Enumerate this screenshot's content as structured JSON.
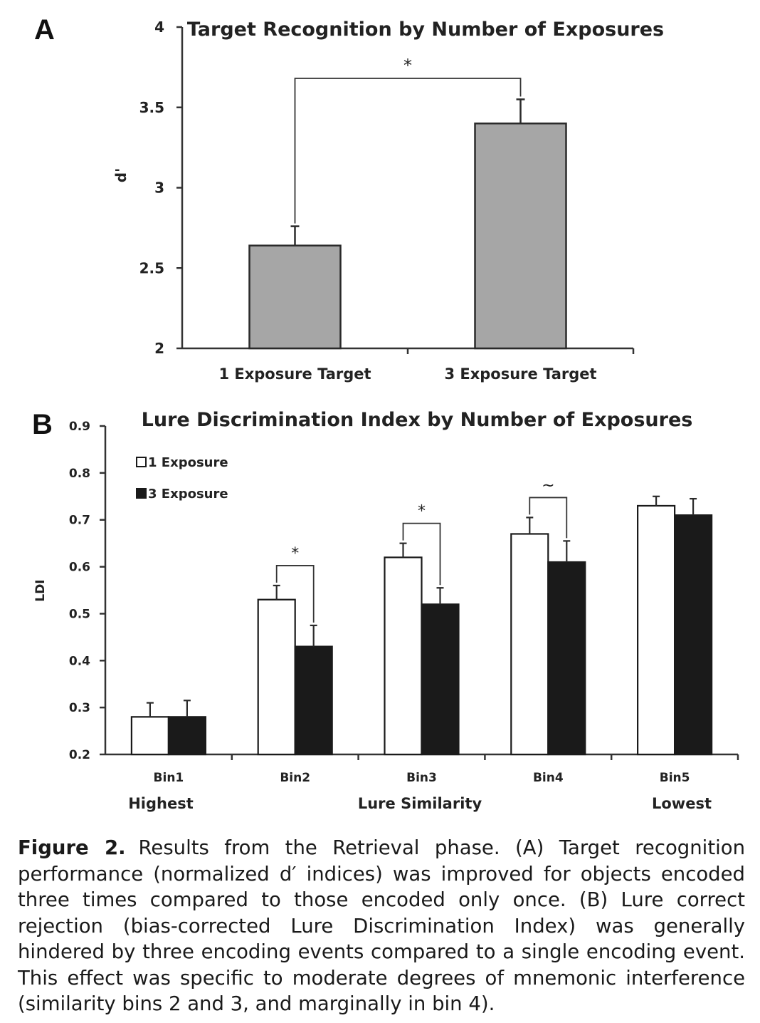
{
  "panels": {
    "a_letter": "A",
    "b_letter": "B"
  },
  "chart_data": [
    {
      "type": "bar",
      "title": "Target Recognition by Number of Exposures",
      "ylabel": "d'",
      "xlabel": "",
      "categories": [
        "1 Exposure Target",
        "3 Exposure Target"
      ],
      "values": [
        2.64,
        3.4
      ],
      "errors": [
        0.12,
        0.15
      ],
      "ylim": [
        2,
        4
      ],
      "yticks": [
        "2",
        "2.5",
        "3",
        "3.5",
        "4"
      ],
      "bar_color": "#a6a6a6",
      "grid": false,
      "annotations": [
        {
          "text": "*",
          "between": [
            0,
            1
          ]
        }
      ]
    },
    {
      "type": "bar",
      "title": "Lure Discrimination Index by Number of Exposures",
      "ylabel": "LDI",
      "xlabel": "Lure Similarity",
      "x_end_labels": [
        "Highest",
        "Lowest"
      ],
      "categories": [
        "Bin1",
        "Bin2",
        "Bin3",
        "Bin4",
        "Bin5"
      ],
      "series": [
        {
          "name": "1 Exposure",
          "values": [
            0.28,
            0.53,
            0.62,
            0.67,
            0.73
          ],
          "errors": [
            0.03,
            0.03,
            0.03,
            0.035,
            0.02
          ],
          "color": "#ffffff"
        },
        {
          "name": "3 Exposure",
          "values": [
            0.28,
            0.43,
            0.52,
            0.61,
            0.71
          ],
          "errors": [
            0.035,
            0.045,
            0.035,
            0.045,
            0.035
          ],
          "color": "#1a1a1a"
        }
      ],
      "ylim": [
        0.2,
        0.9
      ],
      "yticks": [
        "0.2",
        "0.3",
        "0.4",
        "0.5",
        "0.6",
        "0.7",
        "0.8",
        "0.9"
      ],
      "legend_position": "top-left",
      "grid": false,
      "annotations": [
        {
          "text": "*",
          "category": 1
        },
        {
          "text": "*",
          "category": 2
        },
        {
          "text": "~",
          "category": 3
        }
      ]
    }
  ],
  "caption": {
    "label": "Figure 2.",
    "text": "Results from the Retrieval phase. (A) Target recognition performance (normalized d′ indices) was improved for objects encoded three times compared to those encoded only once. (B) Lure correct rejection (bias-corrected Lure Discrimination Index) was generally hindered by three encoding events compared to a single encoding event. This effect was specific to moderate degrees of mnemonic interference (similarity bins 2 and 3, and marginally in bin 4)."
  }
}
